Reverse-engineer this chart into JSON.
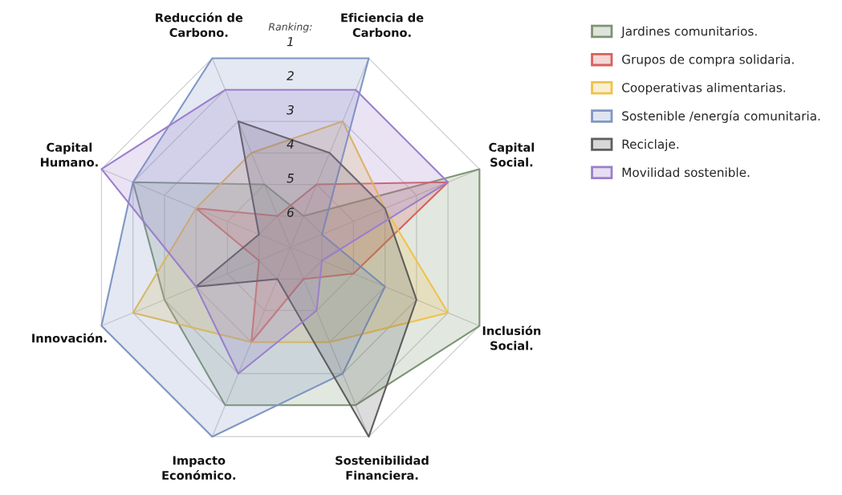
{
  "chart_data": {
    "type": "radar",
    "ylabel": "Ranking:",
    "categories": [
      "Reducción de\nCarbono.",
      "Eficiencia de\nCarbono.",
      "Capital\nSocial.",
      "Inclusión\nSocial.",
      "Sostenibilidad\nFinanciera.",
      "Impacto\nEconómico.",
      "Innovación.",
      "Capital\nHumano."
    ],
    "ylim": [
      7,
      1
    ],
    "yticks": [
      1,
      2,
      3,
      4,
      5,
      6
    ],
    "grid": true,
    "legend": "right",
    "series": [
      {
        "name": "Jardines comunitarios.",
        "color": "#7d9474",
        "values": [
          5,
          6,
          1,
          1,
          2,
          2,
          3,
          2
        ]
      },
      {
        "name": "Grupos de compra solidaria.",
        "color": "#d9605c",
        "values": [
          6,
          5,
          2,
          5,
          6,
          4,
          6,
          4
        ]
      },
      {
        "name": "Cooperativas alimentarias.",
        "color": "#f0c14b",
        "values": [
          4,
          3,
          4,
          2,
          4,
          4,
          2,
          4
        ]
      },
      {
        "name": "Sostenible /energía comunitaria.",
        "color": "#8096c4",
        "values": [
          1,
          1,
          6,
          4,
          3,
          1,
          1,
          2
        ]
      },
      {
        "name": "Reciclaje.",
        "color": "#5e5e5e",
        "values": [
          3,
          4,
          4,
          3,
          1,
          6,
          4,
          6
        ]
      },
      {
        "name": "Movilidad sostenible.",
        "color": "#9b7fcc",
        "values": [
          2,
          2,
          2,
          6,
          5,
          3,
          4,
          1
        ]
      }
    ]
  }
}
